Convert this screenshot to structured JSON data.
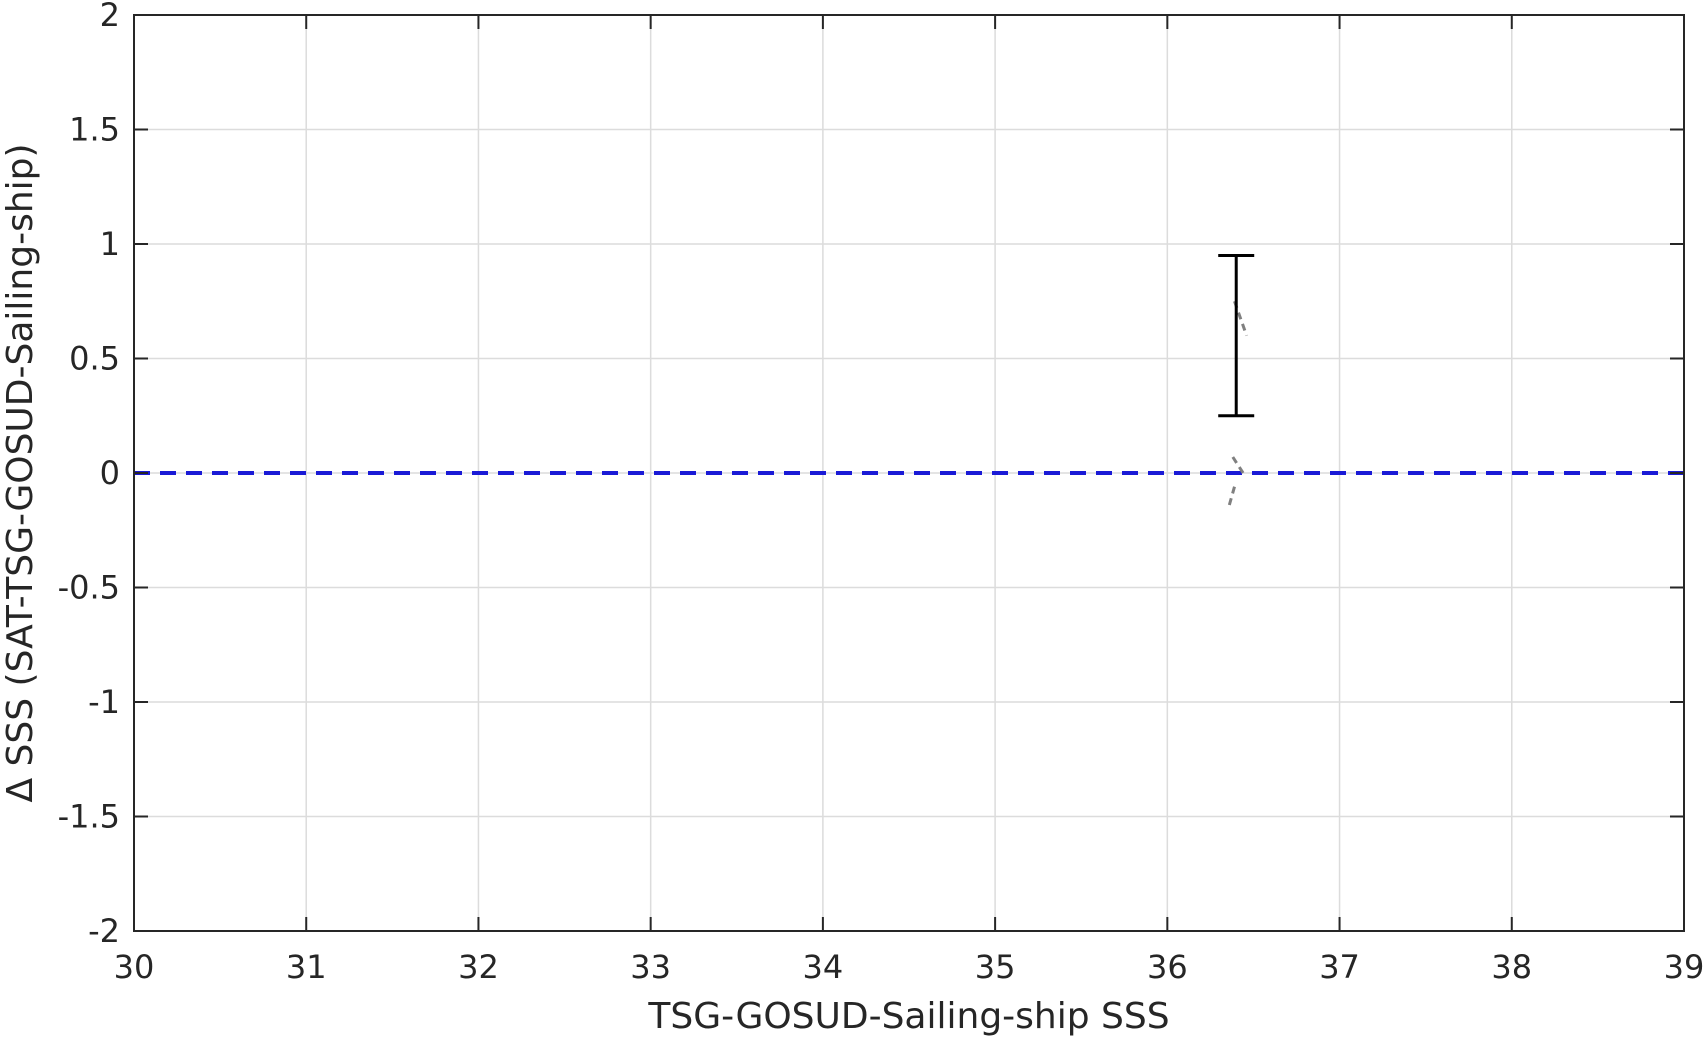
{
  "chart_data": {
    "type": "scatter",
    "title": "",
    "xlabel": "TSG-GOSUD-Sailing-ship SSS",
    "ylabel": "Δ SSS (SAT-TSG-GOSUD-Sailing-ship)",
    "xlim": [
      30,
      39
    ],
    "ylim": [
      -2,
      2
    ],
    "xticks": [
      30,
      31,
      32,
      33,
      34,
      35,
      36,
      37,
      38,
      39
    ],
    "yticks": [
      -2,
      -1.5,
      -1,
      -0.5,
      0,
      0.5,
      1,
      1.5,
      2
    ],
    "grid": true,
    "legend": "none",
    "reference_line": {
      "y": 0,
      "style": "dashed",
      "color": "#1a1ad6"
    },
    "error_bars": [
      {
        "x": 36.4,
        "low": 0.25,
        "high": 0.95,
        "color": "#000000"
      }
    ],
    "trace_segments": [
      {
        "points": [
          [
            36.39,
            0.75
          ],
          [
            36.46,
            0.6
          ]
        ],
        "color": "#808080"
      },
      {
        "points": [
          [
            36.38,
            0.07
          ],
          [
            36.44,
            0.0
          ]
        ],
        "color": "#808080"
      },
      {
        "points": [
          [
            36.39,
            -0.06
          ],
          [
            36.36,
            -0.14
          ]
        ],
        "color": "#808080"
      }
    ]
  }
}
